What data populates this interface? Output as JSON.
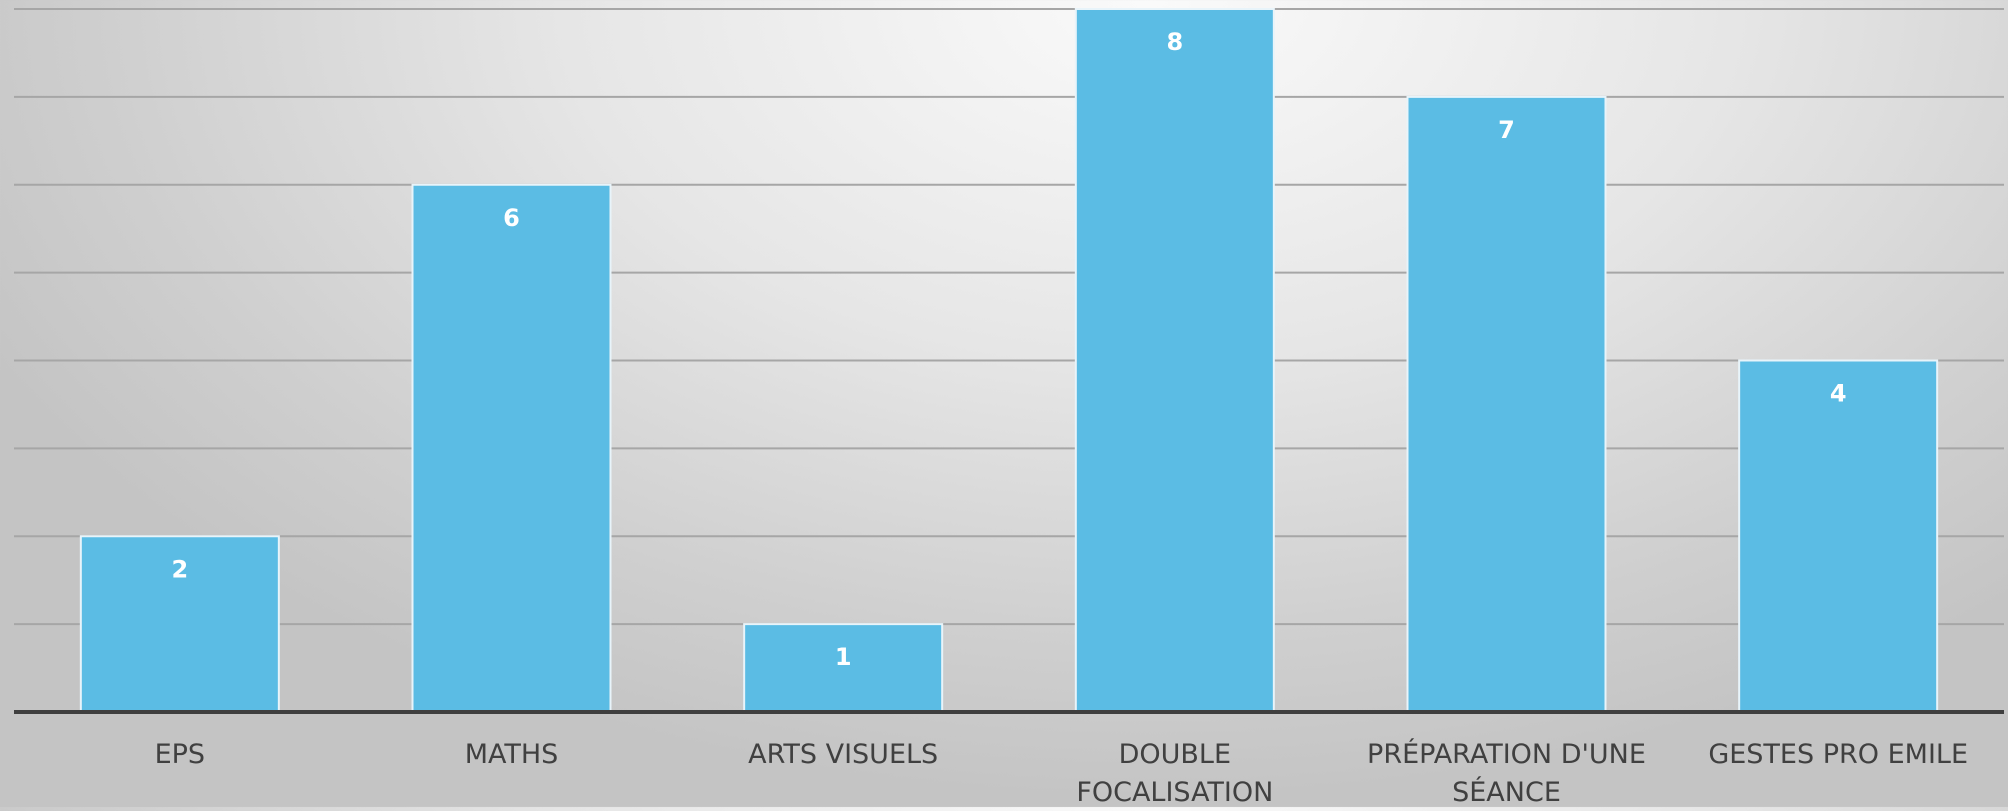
{
  "chart_data": {
    "type": "bar",
    "categories": [
      [
        "EPS"
      ],
      [
        "MATHS"
      ],
      [
        "ARTS VISUELS"
      ],
      [
        "DOUBLE",
        "FOCALISATION"
      ],
      [
        "PRÉPARATION D'UNE",
        "SÉANCE"
      ],
      [
        "GESTES PRO EMILE"
      ]
    ],
    "values": [
      2,
      6,
      1,
      8,
      7,
      4
    ],
    "ylim": [
      0,
      8
    ],
    "grid": true,
    "data_labels": true,
    "colors": {
      "bar_fill": "#5bbce4",
      "bar_stroke": "#e8f4fa",
      "gridline": "#a6a6a6",
      "axis_line": "#3f3f3f",
      "label_text": "#404040",
      "data_label_text": "#ffffff"
    }
  }
}
